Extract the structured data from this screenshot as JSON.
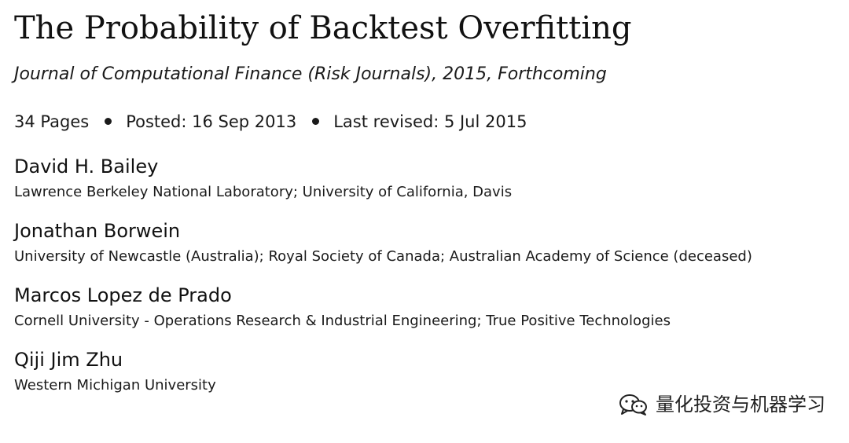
{
  "paper": {
    "title": "The Probability of Backtest Overfitting",
    "journal": "Journal of Computational Finance (Risk Journals), 2015, Forthcoming",
    "meta": {
      "pages": "34 Pages",
      "posted": "Posted: 16 Sep 2013",
      "revised": "Last revised: 5 Jul 2015"
    },
    "authors": [
      {
        "name": "David H. Bailey",
        "affiliation": "Lawrence Berkeley National Laboratory; University of California, Davis"
      },
      {
        "name": "Jonathan Borwein",
        "affiliation": "University of Newcastle (Australia); Royal Society of Canada; Australian Academy of Science (deceased)"
      },
      {
        "name": "Marcos Lopez de Prado",
        "affiliation": "Cornell University - Operations Research & Industrial Engineering; True Positive Technologies"
      },
      {
        "name": "Qiji Jim Zhu",
        "affiliation": "Western Michigan University"
      }
    ]
  },
  "watermark": {
    "icon": "wechat-icon",
    "text": "量化投资与机器学习"
  }
}
